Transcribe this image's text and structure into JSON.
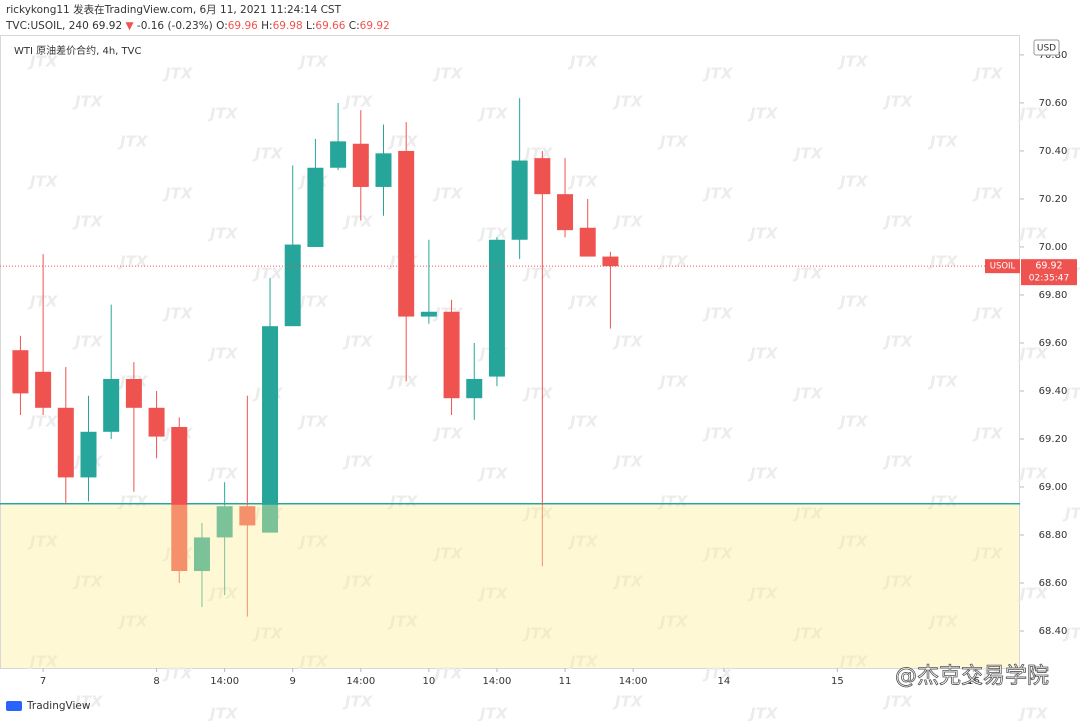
{
  "header": {
    "author_line": "rickykong11 发表在TradingView.com, 6月 11, 2021 11:24:14 CST",
    "symbol": "TVC:USOIL, 240",
    "last": 69.92,
    "arrow": "▼",
    "change": -0.16,
    "change_pct": "(-0.23%)",
    "ohlc": [
      {
        "label": "O:",
        "value": 69.96
      },
      {
        "label": "H:",
        "value": 69.98
      },
      {
        "label": "L:",
        "value": 69.66
      },
      {
        "label": "C:",
        "value": 69.92
      }
    ]
  },
  "chart_data": {
    "type": "candlestick",
    "legend": "WTI 原油差价合约, 4h, TVC",
    "currency": "USD",
    "up_color": "#26a69a",
    "down_color": "#ef5350",
    "open": [
      69.57,
      69.48,
      69.33,
      69.04,
      69.23,
      69.45,
      69.33,
      69.25,
      68.65,
      68.79,
      68.92,
      68.81,
      69.67,
      70.0,
      70.33,
      70.43,
      70.25,
      70.4,
      69.71,
      69.73,
      69.37,
      69.46,
      70.03,
      70.37,
      70.22,
      70.08,
      69.96
    ],
    "high": [
      69.63,
      69.97,
      69.5,
      69.38,
      69.76,
      69.52,
      69.4,
      69.29,
      68.85,
      69.02,
      69.38,
      69.87,
      70.34,
      70.45,
      70.6,
      70.57,
      70.51,
      70.52,
      70.03,
      69.78,
      69.6,
      70.04,
      70.62,
      70.4,
      70.37,
      70.2,
      69.98
    ],
    "low": [
      69.3,
      69.3,
      68.93,
      68.94,
      69.2,
      68.98,
      69.12,
      68.6,
      68.5,
      68.55,
      68.46,
      68.81,
      69.67,
      70.0,
      70.32,
      70.11,
      70.13,
      69.44,
      69.68,
      69.3,
      69.28,
      69.42,
      69.95,
      68.67,
      70.04,
      69.96,
      69.66
    ],
    "close": [
      69.39,
      69.33,
      69.04,
      69.23,
      69.45,
      69.33,
      69.21,
      68.65,
      68.79,
      68.92,
      68.84,
      69.67,
      70.01,
      70.33,
      70.44,
      70.25,
      70.39,
      69.71,
      69.73,
      69.37,
      69.45,
      70.03,
      70.36,
      70.22,
      70.07,
      69.96,
      69.92
    ],
    "xlim": [
      -0.9,
      44.05
    ],
    "ylim": [
      68.246,
      70.883
    ],
    "yticks": [
      {
        "value": 68.4,
        "label": "68.40"
      },
      {
        "value": 68.6,
        "label": "68.60"
      },
      {
        "value": 68.8,
        "label": "68.80"
      },
      {
        "value": 69.0,
        "label": "69.00"
      },
      {
        "value": 69.2,
        "label": "69.20"
      },
      {
        "value": 69.4,
        "label": "69.40"
      },
      {
        "value": 69.6,
        "label": "69.60"
      },
      {
        "value": 69.8,
        "label": "69.80"
      },
      {
        "value": 70.0,
        "label": "70.00"
      },
      {
        "value": 70.2,
        "label": "70.20"
      },
      {
        "value": 70.4,
        "label": "70.40"
      },
      {
        "value": 70.6,
        "label": "70.60"
      },
      {
        "value": 70.8,
        "label": "70.80"
      }
    ],
    "xticks": [
      {
        "value": 1,
        "label": "7"
      },
      {
        "value": 6,
        "label": "8"
      },
      {
        "value": 9,
        "label": "14:00"
      },
      {
        "value": 12,
        "label": "9"
      },
      {
        "value": 15,
        "label": "14:00"
      },
      {
        "value": 18,
        "label": "10"
      },
      {
        "value": 21,
        "label": "14:00"
      },
      {
        "value": 24,
        "label": "11"
      },
      {
        "value": 27,
        "label": "14:00"
      },
      {
        "value": 31,
        "label": "14"
      },
      {
        "value": 36,
        "label": "15"
      },
      {
        "value": 42,
        "label": "16"
      }
    ],
    "support_level": 68.93,
    "last_price": {
      "value": 69.92,
      "label": "69.92",
      "symbol": "USOIL",
      "countdown": "02:35:47"
    }
  },
  "watermark": "JTX",
  "brand": "TradingView",
  "credit": "@杰克交易学院"
}
